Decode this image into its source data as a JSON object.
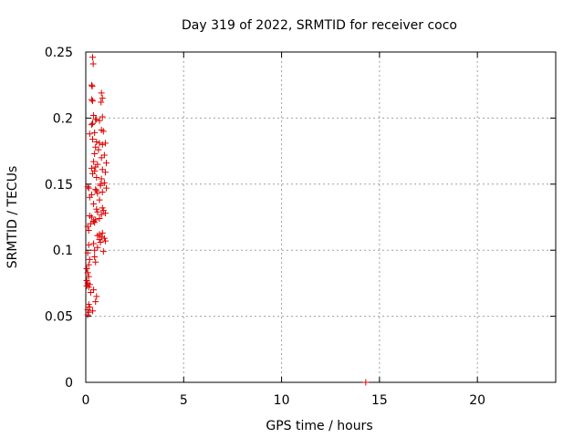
{
  "chart_data": {
    "type": "scatter",
    "title": "Day 319 of 2022, SRMTID for receiver coco",
    "xlabel": "GPS time / hours",
    "ylabel": "SRMTID / TECUs",
    "xlim": [
      0,
      24
    ],
    "ylim": [
      0,
      0.25
    ],
    "xticks": [
      0,
      5,
      10,
      15,
      20
    ],
    "xtick_labels": [
      "0",
      "5",
      "10",
      "15",
      "20"
    ],
    "yticks": [
      0,
      0.05,
      0.1,
      0.15,
      0.2,
      0.25
    ],
    "ytick_labels": [
      "0",
      "0.05",
      "0.1",
      "0.15",
      "0.2",
      "0.25"
    ],
    "grid": true,
    "marker": "plus",
    "series": [
      {
        "color": "#dd0000",
        "x": [
          0.35,
          0.38,
          0.3,
          0.33,
          0.8,
          0.85,
          0.78,
          0.3,
          0.35,
          0.85,
          0.4,
          0.55,
          0.7,
          0.5,
          0.35,
          0.3,
          0.8,
          0.9,
          0.2,
          0.45,
          0.55,
          0.7,
          0.35,
          0.85,
          1.0,
          0.5,
          0.65,
          0.45,
          0.8,
          0.95,
          0.4,
          0.6,
          1.05,
          0.5,
          0.3,
          0.45,
          0.85,
          1.0,
          0.35,
          0.55,
          0.8,
          0.1,
          0.15,
          0.75,
          0.5,
          0.55,
          0.95,
          0.75,
          0.6,
          0.85,
          1.05,
          0.2,
          0.3,
          0.7,
          0.4,
          0.55,
          0.85,
          0.6,
          0.9,
          0.8,
          1.0,
          0.2,
          0.7,
          0.3,
          0.4,
          0.45,
          0.25,
          0.5,
          0.1,
          0.85,
          0.7,
          0.15,
          0.6,
          0.8,
          0.7,
          0.75,
          0.95,
          1.0,
          0.15,
          0.4,
          0.45,
          0.6,
          0.1,
          0.9,
          0.45,
          0.2,
          0.5,
          0.15,
          0.05,
          0.1,
          0.15,
          0.05,
          0.1,
          0.2,
          0.05,
          0.15,
          0.4,
          0.25,
          0.55,
          0.5,
          0.15,
          0.2,
          0.1,
          0.35,
          0.15,
          0.1,
          14.3
        ],
        "y": [
          0.246,
          0.241,
          0.225,
          0.224,
          0.219,
          0.215,
          0.212,
          0.214,
          0.213,
          0.201,
          0.202,
          0.199,
          0.198,
          0.199,
          0.196,
          0.195,
          0.191,
          0.19,
          0.188,
          0.189,
          0.182,
          0.181,
          0.184,
          0.18,
          0.181,
          0.178,
          0.176,
          0.173,
          0.17,
          0.172,
          0.167,
          0.165,
          0.166,
          0.163,
          0.162,
          0.16,
          0.161,
          0.159,
          0.158,
          0.155,
          0.154,
          0.148,
          0.147,
          0.15,
          0.146,
          0.145,
          0.151,
          0.149,
          0.143,
          0.144,
          0.147,
          0.14,
          0.142,
          0.138,
          0.135,
          0.131,
          0.132,
          0.129,
          0.13,
          0.127,
          0.128,
          0.126,
          0.124,
          0.125,
          0.122,
          0.121,
          0.12,
          0.123,
          0.118,
          0.113,
          0.112,
          0.115,
          0.111,
          0.11,
          0.108,
          0.106,
          0.109,
          0.107,
          0.104,
          0.105,
          0.1,
          0.102,
          0.098,
          0.099,
          0.095,
          0.093,
          0.091,
          0.089,
          0.086,
          0.083,
          0.08,
          0.077,
          0.075,
          0.074,
          0.073,
          0.072,
          0.07,
          0.068,
          0.065,
          0.061,
          0.059,
          0.057,
          0.055,
          0.054,
          0.053,
          0.051,
          0.0
        ]
      }
    ]
  }
}
